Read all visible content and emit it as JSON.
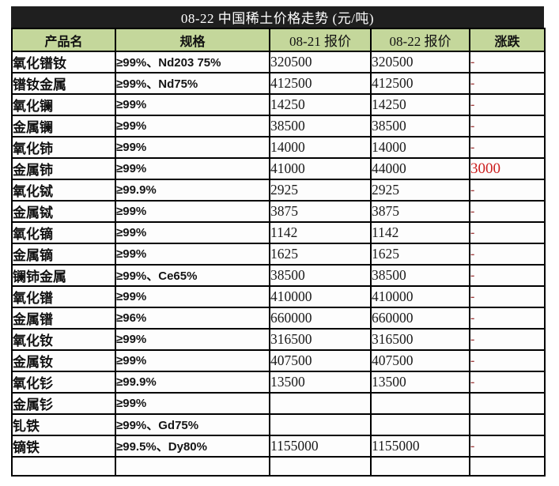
{
  "title": "08-22 中国稀土价格走势 (元/吨)",
  "table": {
    "headers": {
      "product": "产品名",
      "spec": "规格",
      "price_0821": "08-21 报价",
      "price_0822": "08-22 报价",
      "change": "涨跌"
    },
    "rows": [
      {
        "product": "氧化镨钕",
        "spec": "≥99%、Nd203 75%",
        "price_0821": "320500",
        "price_0822": "320500",
        "change": "-",
        "change_type": "dash"
      },
      {
        "product": "镨钕金属",
        "spec": "≥99%、Nd75%",
        "price_0821": "412500",
        "price_0822": "412500",
        "change": "-",
        "change_type": "dash"
      },
      {
        "product": "氧化镧",
        "spec": "≥99%",
        "price_0821": "14250",
        "price_0822": "14250",
        "change": "-",
        "change_type": "dash"
      },
      {
        "product": "金属镧",
        "spec": "≥99%",
        "price_0821": "38500",
        "price_0822": "38500",
        "change": "-",
        "change_type": "dash"
      },
      {
        "product": "氧化铈",
        "spec": "≥99%",
        "price_0821": "14000",
        "price_0822": "14000",
        "change": "-",
        "change_type": "dash"
      },
      {
        "product": "金属铈",
        "spec": "≥99%",
        "price_0821": "41000",
        "price_0822": "44000",
        "change": "3000",
        "change_type": "up"
      },
      {
        "product": "氧化铽",
        "spec": "≥99.9%",
        "price_0821": "2925",
        "price_0822": "2925",
        "change": "-",
        "change_type": "dash"
      },
      {
        "product": "金属铽",
        "spec": "≥99%",
        "price_0821": "3875",
        "price_0822": "3875",
        "change": "-",
        "change_type": "dash"
      },
      {
        "product": "氧化镝",
        "spec": "≥99%",
        "price_0821": "1142",
        "price_0822": "1142",
        "change": "-",
        "change_type": "dash"
      },
      {
        "product": "金属镝",
        "spec": "≥99%",
        "price_0821": "1625",
        "price_0822": "1625",
        "change": "-",
        "change_type": "dash"
      },
      {
        "product": "镧铈金属",
        "spec": "≥99%、Ce65%",
        "price_0821": "38500",
        "price_0822": "38500",
        "change": "-",
        "change_type": "dash"
      },
      {
        "product": "氧化镨",
        "spec": "≥99%",
        "price_0821": "410000",
        "price_0822": "410000",
        "change": "-",
        "change_type": "dash"
      },
      {
        "product": "金属镨",
        "spec": "≥96%",
        "price_0821": "660000",
        "price_0822": "660000",
        "change": "-",
        "change_type": "dash"
      },
      {
        "product": "氧化钕",
        "spec": "≥99%",
        "price_0821": "316500",
        "price_0822": "316500",
        "change": "-",
        "change_type": "dash"
      },
      {
        "product": "金属钕",
        "spec": "≥99%",
        "price_0821": "407500",
        "price_0822": "407500",
        "change": "-",
        "change_type": "dash"
      },
      {
        "product": "氧化钐",
        "spec": "≥99.9%",
        "price_0821": "13500",
        "price_0822": "13500",
        "change": "-",
        "change_type": "dash"
      },
      {
        "product": "金属钐",
        "spec": "≥99%",
        "price_0821": "",
        "price_0822": "",
        "change": "",
        "change_type": "none"
      },
      {
        "product": "钆铁",
        "spec": "≥99%、Gd75%",
        "price_0821": "",
        "price_0822": "",
        "change": "",
        "change_type": "none"
      },
      {
        "product": "镝铁",
        "spec": "≥99.5%、Dy80%",
        "price_0821": "1155000",
        "price_0822": "1155000",
        "change": "-",
        "change_type": "dash"
      }
    ]
  },
  "colors": {
    "title_bg": "#1f1f1f",
    "title_text": "#ffffff",
    "header_bg": "#c4d79b",
    "border": "#000000",
    "change_dash": "#9e3b3b",
    "change_up": "#cc1f1f"
  }
}
